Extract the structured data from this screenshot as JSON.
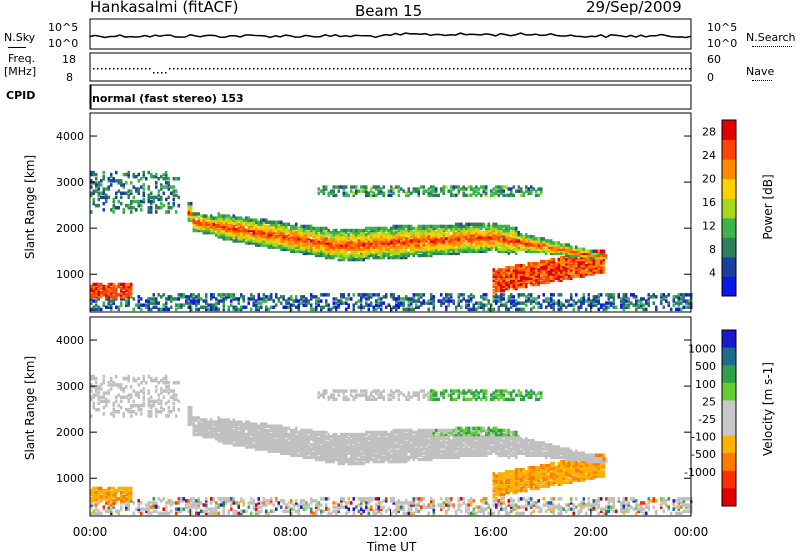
{
  "header": {
    "station": "Hankasalmi (fitACF)",
    "beam": "Beam 15",
    "date": "29/Sep/2009"
  },
  "top_panels": {
    "nsky_label": "N.Sky",
    "nsky_ticks": [
      "10^5",
      "10^0"
    ],
    "nsearch_label": "N.Search",
    "nsearch_ticks": [
      "10^5",
      "10^0"
    ],
    "freq_label_1": "Freq.",
    "freq_label_2": "[MHz]",
    "freq_ticks": [
      "18",
      "8"
    ],
    "nave_label": "Nave",
    "nave_ticks": [
      "60",
      "0"
    ],
    "cpid_label": "CPID",
    "cpid_text": "normal (fast stereo) 153"
  },
  "colors": {
    "power_scale": [
      "#0a18e8",
      "#1c3fa0",
      "#2e7d5b",
      "#3cb44b",
      "#a8d81a",
      "#ffd000",
      "#ff8a00",
      "#ff4500",
      "#e00000"
    ],
    "velocity_scale": [
      "#1a1acc",
      "#1f6b8c",
      "#2f9f4a",
      "#66cc33",
      "#c8c8c8",
      "#c8c8c8",
      "#ffb000",
      "#ff7a00",
      "#ff3000",
      "#e00000"
    ],
    "ground_scatter": "#c0c0c0"
  },
  "chart_data": [
    {
      "type": "heatmap",
      "title": "Power",
      "ylabel": "Slant Range [km]",
      "xlabel": "Time UT",
      "x_ticks": [
        "00:00",
        "04:00",
        "08:00",
        "12:00",
        "16:00",
        "20:00",
        "00:00"
      ],
      "y_ticks": [
        "1000",
        "2000",
        "3000",
        "4000"
      ],
      "ylim": [
        180,
        4500
      ],
      "xlim_hours": [
        0,
        24
      ],
      "colorbar_label": "Power [dB]",
      "colorbar_ticks": [
        "28",
        "24",
        "20",
        "16",
        "12",
        "8",
        "4"
      ],
      "colorbar_range": [
        0,
        30
      ],
      "features": [
        {
          "name": "main echo band",
          "start_h": 4.0,
          "end_h": 20.5,
          "range_km": [
            1200,
            2600
          ],
          "power_db": [
            12,
            26
          ]
        },
        {
          "name": "near range echoes",
          "start_h": 0,
          "end_h": 24,
          "range_km": [
            200,
            500
          ],
          "power_db": [
            4,
            12
          ]
        },
        {
          "name": "late strong echo",
          "start_h": 16.0,
          "end_h": 20.5,
          "range_km": [
            600,
            1200
          ],
          "power_db": [
            20,
            30
          ]
        },
        {
          "name": "early echo",
          "start_h": 0,
          "end_h": 1.5,
          "range_km": [
            450,
            750
          ],
          "power_db": [
            20,
            28
          ]
        }
      ]
    },
    {
      "type": "heatmap",
      "title": "Velocity",
      "ylabel": "Slant Range [km]",
      "xlabel": "Time UT",
      "x_ticks": [
        "00:00",
        "04:00",
        "08:00",
        "12:00",
        "16:00",
        "20:00",
        "00:00"
      ],
      "y_ticks": [
        "1000",
        "2000",
        "3000",
        "4000"
      ],
      "ylim": [
        180,
        4500
      ],
      "xlim_hours": [
        0,
        24
      ],
      "colorbar_label": "Velocity [m s-1]",
      "colorbar_ticks": [
        "1000",
        "500",
        "100",
        "25",
        "-25",
        "-100",
        "-500",
        "-1000"
      ],
      "colorbar_range": [
        -1000,
        1000
      ],
      "features": [
        {
          "name": "ground scatter band",
          "start_h": 4.0,
          "end_h": 20.0,
          "range_km": [
            1200,
            2600
          ],
          "velocity": 0
        },
        {
          "name": "positive velocity patch",
          "start_h": 13.5,
          "end_h": 18.0,
          "range_km": [
            1900,
            2800
          ],
          "velocity": 200
        },
        {
          "name": "negative velocity patch",
          "start_h": 16.0,
          "end_h": 20.5,
          "range_km": [
            600,
            1300
          ],
          "velocity": -200
        }
      ]
    }
  ]
}
